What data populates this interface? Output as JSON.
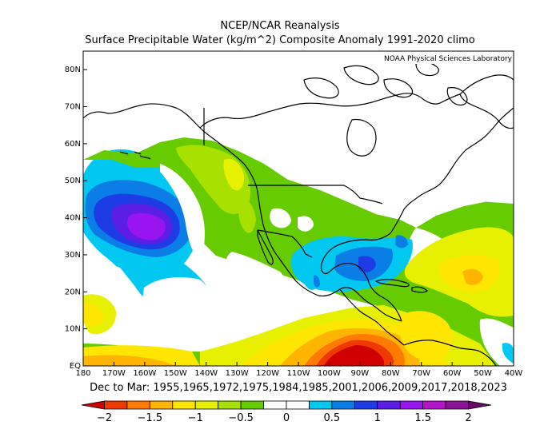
{
  "title": "NCEP/NCAR Reanalysis",
  "subtitle": "Surface Precipitable Water (kg/m^2) Composite Anomaly 1991-2020 climo",
  "credit": "NOAA Physical Sciences Laboratory",
  "caption": "Dec to Mar: 1955,1965,1972,1975,1984,1985,2001,2006,2009,2017,2018,2023",
  "map": {
    "projection": "equirectangular",
    "lon_range": [
      -180,
      -40
    ],
    "lat_range": [
      0,
      85
    ],
    "lon_ticks": [
      "180",
      "170W",
      "160W",
      "150W",
      "140W",
      "130W",
      "120W",
      "110W",
      "100W",
      "90W",
      "80W",
      "70W",
      "60W",
      "50W",
      "40W"
    ],
    "lat_ticks": [
      "EQ",
      "10N",
      "20N",
      "30N",
      "40N",
      "50N",
      "60N",
      "70N",
      "80N"
    ]
  },
  "colorbar": {
    "colors": [
      "#d00000",
      "#ee3a00",
      "#ff7a00",
      "#ffb400",
      "#ffe600",
      "#e6f000",
      "#a8e000",
      "#66cc00",
      "#ffffff",
      "#ffffff",
      "#00c8f0",
      "#0a7ee6",
      "#1e3ce6",
      "#5a1ee6",
      "#9a14f0",
      "#b414c8",
      "#8c1496",
      "#640a64"
    ],
    "labels": [
      "-2",
      "-1.5",
      "-1",
      "-0.5",
      "0",
      "0.5",
      "1",
      "1.5",
      "2"
    ]
  },
  "anomaly_regions": [
    {
      "name": "pacific-moist-anomaly",
      "level": "0.5",
      "color": "#00c8f0"
    },
    {
      "name": "pacific-core-anomaly",
      "level": "1.5",
      "color": "#9a14f0"
    },
    {
      "name": "gulf-moist-anomaly",
      "level": "1",
      "color": "#1e3ce6"
    },
    {
      "name": "east-pacific-dry-anomaly",
      "level": "-2",
      "color": "#d00000"
    },
    {
      "name": "north-america-dry-anomaly",
      "level": "-0.5",
      "color": "#66cc00"
    }
  ]
}
